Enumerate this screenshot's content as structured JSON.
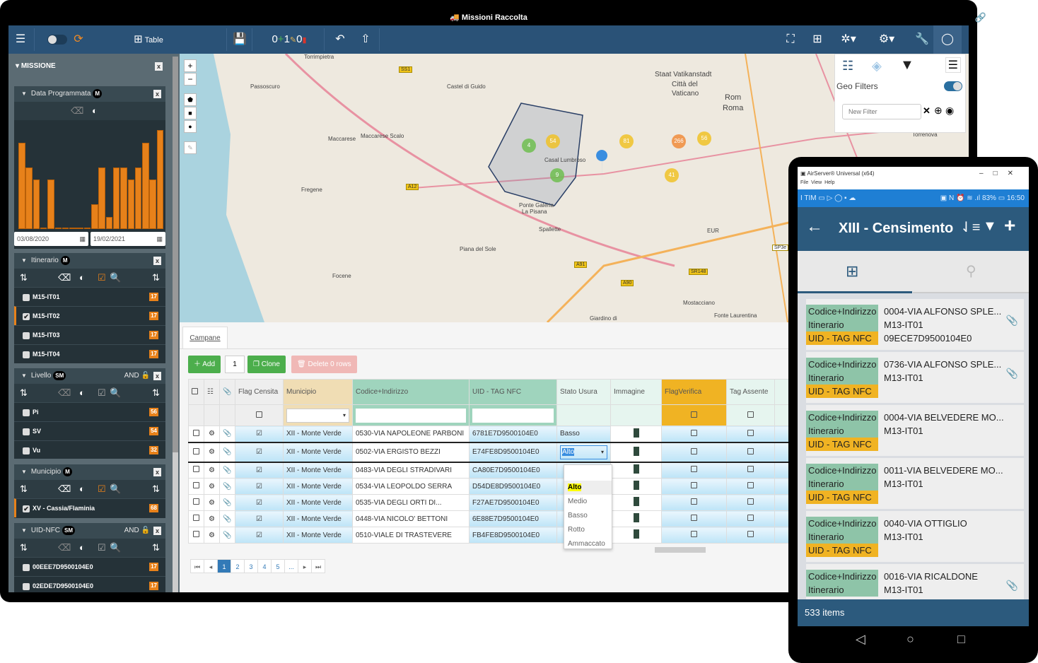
{
  "window": {
    "title": "Missioni Raccolta",
    "controls": "🔗▬▬✕"
  },
  "toolbar": {
    "view_label": "Table",
    "added": "0",
    "modified": "1",
    "deleted": "0"
  },
  "sidebar": {
    "section_title": "MISSIONE",
    "data_programmata": {
      "title": "Data Programmata",
      "badge": "M",
      "from": "03/08/2020",
      "to": "19/02/2021",
      "histogram": [
        7,
        5,
        4,
        0,
        4,
        0,
        0,
        0,
        0,
        0,
        2,
        5,
        1,
        5,
        5,
        4,
        5,
        7,
        4,
        8
      ]
    },
    "itinerario": {
      "title": "Itinerario",
      "badge": "M",
      "items": [
        {
          "label": "M15-IT01",
          "count": "17",
          "checked": false
        },
        {
          "label": "M15-IT02",
          "count": "17",
          "checked": true
        },
        {
          "label": "M15-IT03",
          "count": "17",
          "checked": false
        },
        {
          "label": "M15-IT04",
          "count": "17",
          "checked": false
        }
      ]
    },
    "livello": {
      "title": "Livello",
      "badge": "SM",
      "mode": "AND",
      "items": [
        {
          "label": "Pi",
          "count": "56"
        },
        {
          "label": "SV",
          "count": "54"
        },
        {
          "label": "Vu",
          "count": "32"
        }
      ]
    },
    "municipio": {
      "title": "Municipio",
      "badge": "M",
      "items": [
        {
          "label": "XV - Cassia/Flaminia",
          "count": "68",
          "checked": true
        }
      ]
    },
    "uid_nfc": {
      "title": "UID-NFC",
      "badge": "SM",
      "mode": "AND",
      "items": [
        {
          "label": "00EEE7D9500104E0",
          "count": "17"
        },
        {
          "label": "02EDE7D9500104E0",
          "count": "17"
        }
      ]
    }
  },
  "map": {
    "labels": [
      "Torrimpietra",
      "Passoscuro",
      "Castel di Guido",
      "Maccarese",
      "Maccarese Scalo",
      "Fregene",
      "Focene",
      "Staat Vatikanstadt",
      "Città del",
      "Vaticano",
      "Rom",
      "Roma",
      "Casal Lumbroso",
      "Ponte Galeria",
      "La Pisana",
      "Spallette",
      "Piana del Sole",
      "EUR",
      "Mostacciano",
      "Fonte Laurentina",
      "Torrenova",
      "Giardino di"
    ],
    "roads": [
      "SS1",
      "A12",
      "A91",
      "A90",
      "SR148",
      "SP3e"
    ],
    "clusters": [
      "4",
      "54",
      "81",
      "266",
      "56",
      "9",
      "41"
    ],
    "geo_filters": {
      "label": "Geo Filters",
      "enabled": true,
      "placeholder": "New Filter"
    }
  },
  "grid": {
    "tab": "Campane",
    "add_label": "Add",
    "add_count": "1",
    "clone_label": "Clone",
    "delete_label": "Delete 0 rows",
    "columns": [
      "Flag Censita",
      "Municipio",
      "Codice+Indirizzo",
      "UID - TAG NFC",
      "Stato Usura",
      "Immagine",
      "FlagVerifica",
      "Tag Assente"
    ],
    "rows": [
      {
        "municipio": "XII - Monte Verde",
        "codice": "0530-VIA NAPOLEONE PARBONI",
        "uid": "6781E7D9500104E0",
        "stato": "Basso"
      },
      {
        "municipio": "XII - Monte Verde",
        "codice": "0502-VIA ERGISTO BEZZI",
        "uid": "E74FE8D9500104E0",
        "stato": "Alto"
      },
      {
        "municipio": "XII - Monte Verde",
        "codice": "0483-VIA DEGLI STRADIVARI",
        "uid": "CA80E7D9500104E0",
        "stato": ""
      },
      {
        "municipio": "XII - Monte Verde",
        "codice": "0534-VIA LEOPOLDO SERRA",
        "uid": "D54DE8D9500104E0",
        "stato": ""
      },
      {
        "municipio": "XII - Monte Verde",
        "codice": "0535-VIA DEGLI ORTI DI...",
        "uid": "F27AE7D9500104E0",
        "stato": ""
      },
      {
        "municipio": "XII - Monte Verde",
        "codice": "0448-VIA NICOLO' BETTONI",
        "uid": "6E88E7D9500104E0",
        "stato": ""
      },
      {
        "municipio": "XII - Monte Verde",
        "codice": "0510-VIALE DI TRASTEVERE",
        "uid": "FB4FE8D9500104E0",
        "stato": ""
      }
    ],
    "dropdown_options": [
      "Alto",
      "Medio",
      "Basso",
      "Rotto",
      "Ammaccato"
    ],
    "pages": [
      "1",
      "2",
      "3",
      "4",
      "5",
      "..."
    ],
    "current_page": "1"
  },
  "phone": {
    "window_title": "AirServer® Universal (x64)",
    "menu": [
      "File",
      "View",
      "Help"
    ],
    "status_left": "TIM",
    "battery": "83%",
    "time": "16:50",
    "title": "XIII - Censimento",
    "items": [
      {
        "codice": "0004-VIA ALFONSO SPLE...",
        "itinerario": "M13-IT01",
        "uid": "09ECE7D9500104E0",
        "attach": true
      },
      {
        "codice": "0736-VIA ALFONSO SPLE...",
        "itinerario": "M13-IT01",
        "uid": "",
        "attach": true
      },
      {
        "codice": "0004-VIA BELVEDERE MO...",
        "itinerario": "M13-IT01",
        "uid": "",
        "attach": false
      },
      {
        "codice": "0011-VIA BELVEDERE MO...",
        "itinerario": "M13-IT01",
        "uid": "",
        "attach": false
      },
      {
        "codice": "0040-VIA OTTIGLIO",
        "itinerario": "M13-IT01",
        "uid": "",
        "attach": false
      },
      {
        "codice": "0016-VIA RICALDONE",
        "itinerario": "M13-IT01",
        "uid": "",
        "attach": true
      }
    ],
    "labels": {
      "codice": "Codice+Indirizzo",
      "itinerario": "Itinerario",
      "uid": "UID - TAG NFC"
    },
    "footer": "533 items"
  }
}
